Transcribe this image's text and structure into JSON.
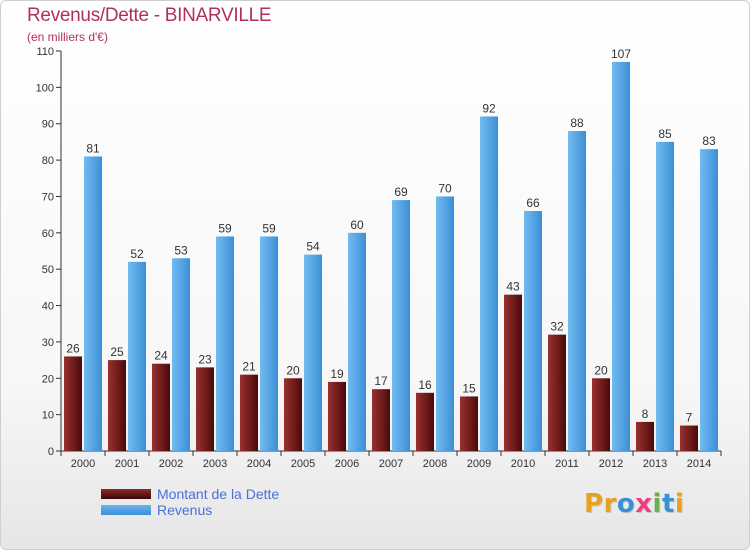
{
  "header": {
    "title": "Revenus/Dette - BINARVILLE",
    "subtitle": "(en milliers d'€)"
  },
  "legend": {
    "items": [
      {
        "label": "Montant de la Dette"
      },
      {
        "label": "Revenus"
      }
    ]
  },
  "logo": {
    "text": "Proxiti"
  },
  "colors": {
    "dette_top": "#8f2a2a",
    "dette_bottom": "#3a0707",
    "revenus_top": "#6ab4ec",
    "revenus_bottom": "#3a8fd6",
    "title": "#b03060",
    "legend_text": "#4a6fd8"
  },
  "chart_data": {
    "type": "bar",
    "title": "Revenus/Dette - BINARVILLE",
    "subtitle": "(en milliers d'€)",
    "xlabel": "",
    "ylabel": "",
    "categories": [
      "2000",
      "2001",
      "2002",
      "2003",
      "2004",
      "2005",
      "2006",
      "2007",
      "2008",
      "2009",
      "2010",
      "2011",
      "2012",
      "2013",
      "2014"
    ],
    "series": [
      {
        "name": "Montant de la Dette",
        "values": [
          26,
          25,
          24,
          23,
          21,
          20,
          19,
          17,
          16,
          15,
          43,
          32,
          20,
          8,
          7
        ]
      },
      {
        "name": "Revenus",
        "values": [
          81,
          52,
          53,
          59,
          59,
          54,
          60,
          69,
          70,
          92,
          66,
          88,
          107,
          85,
          83
        ]
      }
    ],
    "ylim": [
      0,
      110
    ],
    "yticks": [
      0,
      10,
      20,
      30,
      40,
      50,
      60,
      70,
      80,
      90,
      100,
      110
    ],
    "grid": false,
    "legend_position": "bottom-left"
  }
}
